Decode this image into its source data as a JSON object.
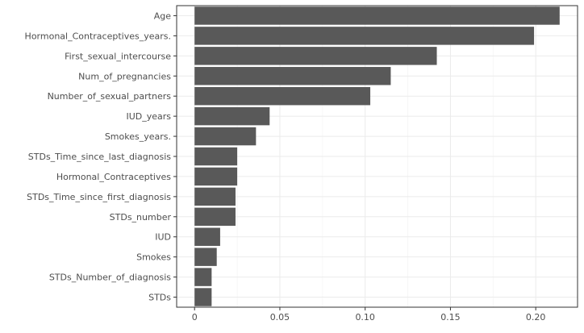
{
  "chart_data": {
    "type": "bar",
    "orientation": "horizontal",
    "title": "",
    "xlabel": "",
    "ylabel": "",
    "categories": [
      "Age",
      "Hormonal_Contraceptives_years.",
      "First_sexual_intercourse",
      "Num_of_pregnancies",
      "Number_of_sexual_partners",
      "IUD_years",
      "Smokes_years.",
      "STDs_Time_since_last_diagnosis",
      "Hormonal_Contraceptives",
      "STDs_Time_since_first_diagnosis",
      "STDs_number",
      "IUD",
      "Smokes",
      "STDs_Number_of_diagnosis",
      "STDs"
    ],
    "values": [
      0.214,
      0.199,
      0.142,
      0.115,
      0.103,
      0.044,
      0.036,
      0.025,
      0.025,
      0.024,
      0.024,
      0.015,
      0.013,
      0.01,
      0.01
    ],
    "xlim": [
      -0.0105,
      0.2245
    ],
    "x_ticks": [
      0,
      0.05,
      0.1,
      0.15,
      0.2
    ],
    "x_tick_labels": [
      "0",
      "0.05",
      "0.10",
      "0.15",
      "0.20"
    ],
    "grid": true,
    "colors": {
      "bar": "#595959",
      "panel_border": "#333333",
      "grid_major": "#ebebeb",
      "grid_minor": "#f5f5f5",
      "tick_label": "#4d4d4d",
      "tick": "#333333"
    }
  }
}
